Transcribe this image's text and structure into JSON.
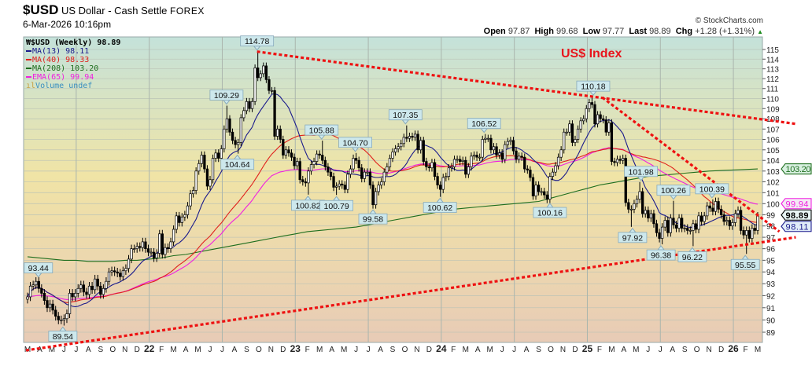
{
  "header": {
    "symbol": "$USD",
    "name": "US Dollar - Cash Settle",
    "exchange": "FOREX",
    "date": "6-Mar-2026 10:16pm",
    "copyright": "© StockCharts.com",
    "open_label": "Open",
    "open": "97.87",
    "high_label": "High",
    "high": "99.68",
    "low_label": "Low",
    "low": "97.77",
    "last_label": "Last",
    "last": "98.89",
    "chg_label": "Chg",
    "chg": "+1.28 (+1.31%)",
    "chg_icon": "up-triangle-icon"
  },
  "legend": [
    {
      "text": "$USD (Weekly) 98.89",
      "color": "#000000",
      "icon": "candlestick-icon"
    },
    {
      "text": "MA(13) 98.11",
      "color": "#1a1a8c"
    },
    {
      "text": "MA(40) 98.33",
      "color": "#e0201c"
    },
    {
      "text": "MA(208) 103.20",
      "color": "#1e6e1e"
    },
    {
      "text": "EMA(65) 99.94",
      "color": "#f020e0"
    },
    {
      "text": "Volume undef",
      "color": "#3a8fc0",
      "icon": "volume-bars-icon"
    }
  ],
  "annotation_title": "US$ Index",
  "colors": {
    "ma13": "#1a1a8c",
    "ma40": "#e0201c",
    "ma208": "#1e6e1e",
    "ema65": "#f020e0",
    "trendline": "#ee1111",
    "label_bg": "#cde8ec"
  },
  "chart_data": {
    "type": "candlestick",
    "interval": "weekly",
    "y_scale": "log",
    "ylim": [
      88.3,
      115.9
    ],
    "y_ticks": [
      89,
      90,
      91,
      92,
      93,
      94,
      95,
      96,
      97,
      98,
      99,
      100,
      101,
      102,
      103,
      104,
      105,
      106,
      107,
      108,
      109,
      110,
      111,
      112,
      113,
      114,
      115
    ],
    "x_ticks": [
      "M",
      "A",
      "M",
      "J",
      "J",
      "A",
      "S",
      "O",
      "N",
      "D",
      "22",
      "F",
      "M",
      "A",
      "M",
      "J",
      "J",
      "A",
      "S",
      "O",
      "N",
      "D",
      "23",
      "F",
      "M",
      "A",
      "M",
      "J",
      "J",
      "A",
      "S",
      "O",
      "N",
      "D",
      "24",
      "F",
      "M",
      "A",
      "M",
      "J",
      "J",
      "A",
      "S",
      "O",
      "N",
      "D",
      "25",
      "F",
      "M",
      "A",
      "M",
      "J",
      "J",
      "A",
      "S",
      "O",
      "N",
      "D",
      "26",
      "F",
      "M"
    ],
    "grid": true,
    "close": [
      91.9,
      92.8,
      92.9,
      93.2,
      92.6,
      92.2,
      91.6,
      91.0,
      91.3,
      90.8,
      90.3,
      90.0,
      90.0,
      90.1,
      90.5,
      92.2,
      91.9,
      92.2,
      92.6,
      92.9,
      92.3,
      92.1,
      92.8,
      92.5,
      93.4,
      92.8,
      92.1,
      92.6,
      93.2,
      94.0,
      94.1,
      94.0,
      93.9,
      93.6,
      94.1,
      94.3,
      95.1,
      96.0,
      96.0,
      96.2,
      96.1,
      96.6,
      96.0,
      95.7,
      95.7,
      95.2,
      95.6,
      97.3,
      95.5,
      96.1,
      96.0,
      96.6,
      97.7,
      98.9,
      98.3,
      98.8,
      99.0,
      99.8,
      100.9,
      101.2,
      103.0,
      103.7,
      104.5,
      103.2,
      101.6,
      102.2,
      104.2,
      104.7,
      104.2,
      105.1,
      107.0,
      108.0,
      106.7,
      105.9,
      105.5,
      105.7,
      108.1,
      108.8,
      109.7,
      109.0,
      109.7,
      113.1,
      112.1,
      112.5,
      113.3,
      111.9,
      110.8,
      110.8,
      106.3,
      107.0,
      106.0,
      104.5,
      105.0,
      104.7,
      104.3,
      103.5,
      103.9,
      102.2,
      102.0,
      101.9,
      103.0,
      103.6,
      103.9,
      104.6,
      104.5,
      104.0,
      103.4,
      102.9,
      102.5,
      101.5,
      101.6,
      101.8,
      101.7,
      101.3,
      102.7,
      103.2,
      104.2,
      104.0,
      103.3,
      102.3,
      102.9,
      102.9,
      101.7,
      99.9,
      101.1,
      101.7,
      102.0,
      102.9,
      103.4,
      104.2,
      104.8,
      105.1,
      105.3,
      105.6,
      106.2,
      106.1,
      106.3,
      106.2,
      106.5,
      105.0,
      105.9,
      103.9,
      103.4,
      103.3,
      103.8,
      102.5,
      101.7,
      101.3,
      102.4,
      102.5,
      103.3,
      103.4,
      104.1,
      104.1,
      103.9,
      104.0,
      102.7,
      103.4,
      104.4,
      104.5,
      104.3,
      104.3,
      106.0,
      106.1,
      106.1,
      105.0,
      105.3,
      104.5,
      104.7,
      104.1,
      105.5,
      105.8,
      105.9,
      104.9,
      104.1,
      104.4,
      104.3,
      103.2,
      103.1,
      102.4,
      100.7,
      101.7,
      101.1,
      101.1,
      100.8,
      100.4,
      102.5,
      102.9,
      103.5,
      104.3,
      105.0,
      106.7,
      106.7,
      107.5,
      105.7,
      106.0,
      107.0,
      107.8,
      108.0,
      109.0,
      109.6,
      109.4,
      107.5,
      108.4,
      108.0,
      107.9,
      106.7,
      107.6,
      103.9,
      103.8,
      104.1,
      104.0,
      104.2,
      100.1,
      99.5,
      99.5,
      100.0,
      100.4,
      101.1,
      99.1,
      99.4,
      98.7,
      99.1,
      98.2,
      97.4,
      96.9,
      97.9,
      98.5,
      97.4,
      98.7,
      98.1,
      97.8,
      98.7,
      97.8,
      97.8,
      97.6,
      97.6,
      98.2,
      97.7,
      98.9,
      98.4,
      98.9,
      99.8,
      99.6,
      99.3,
      100.2,
      99.5,
      99.0,
      98.4,
      98.5,
      98.0,
      98.3,
      99.1,
      99.4,
      97.6,
      97.2,
      97.6,
      96.9,
      97.8,
      97.6,
      98.89
    ],
    "ma208_monthly": [
      95.3,
      95.2,
      95.1,
      95.0,
      95.0,
      94.9,
      94.9,
      94.9,
      95.0,
      95.0,
      95.1,
      95.2,
      95.4,
      95.5,
      95.7,
      95.9,
      96.1,
      96.3,
      96.5,
      96.7,
      96.9,
      97.1,
      97.3,
      97.5,
      97.6,
      97.7,
      97.8,
      97.9,
      98.1,
      98.3,
      98.5,
      98.7,
      98.9,
      99.1,
      99.3,
      99.5,
      99.6,
      99.7,
      99.8,
      99.9,
      100.0,
      100.1,
      100.2,
      100.5,
      100.8,
      101.1,
      101.4,
      101.7,
      101.9,
      102.1,
      102.3,
      102.5,
      102.6,
      102.7,
      102.8,
      102.9,
      103.0,
      103.05,
      103.1,
      103.15,
      103.2
    ],
    "annotations": [
      {
        "text": "93.44",
        "value": 93.44,
        "date": "2021-04-01",
        "pos": "above"
      },
      {
        "text": "89.54",
        "value": 89.54,
        "date": "2021-06-01",
        "pos": "below"
      },
      {
        "text": "109.29",
        "value": 109.29,
        "date": "2022-07-14",
        "pos": "above"
      },
      {
        "text": "104.64",
        "value": 104.64,
        "date": "2022-08-10",
        "pos": "below"
      },
      {
        "text": "114.78",
        "value": 114.78,
        "date": "2022-09-28",
        "pos": "above"
      },
      {
        "text": "100.82",
        "value": 100.82,
        "date": "2023-02-02",
        "pos": "below"
      },
      {
        "text": "105.88",
        "value": 105.88,
        "date": "2023-03-08",
        "pos": "above"
      },
      {
        "text": "100.79",
        "value": 100.79,
        "date": "2023-04-14",
        "pos": "below"
      },
      {
        "text": "104.70",
        "value": 104.7,
        "date": "2023-05-31",
        "pos": "above"
      },
      {
        "text": "99.58",
        "value": 99.58,
        "date": "2023-07-14",
        "pos": "below"
      },
      {
        "text": "107.35",
        "value": 107.35,
        "date": "2023-10-03",
        "pos": "above"
      },
      {
        "text": "100.62",
        "value": 100.62,
        "date": "2023-12-28",
        "pos": "below"
      },
      {
        "text": "106.52",
        "value": 106.52,
        "date": "2024-04-16",
        "pos": "above"
      },
      {
        "text": "100.16",
        "value": 100.16,
        "date": "2024-09-27",
        "pos": "below"
      },
      {
        "text": "110.18",
        "value": 110.18,
        "date": "2025-01-13",
        "pos": "above"
      },
      {
        "text": "97.92",
        "value": 97.92,
        "date": "2025-04-21",
        "pos": "below"
      },
      {
        "text": "101.98",
        "value": 101.98,
        "date": "2025-05-12",
        "pos": "above"
      },
      {
        "text": "96.38",
        "value": 96.38,
        "date": "2025-07-01",
        "pos": "below"
      },
      {
        "text": "100.26",
        "value": 100.26,
        "date": "2025-08-01",
        "pos": "above"
      },
      {
        "text": "96.22",
        "value": 96.22,
        "date": "2025-09-17",
        "pos": "below"
      },
      {
        "text": "100.39",
        "value": 100.39,
        "date": "2025-11-05",
        "pos": "above"
      },
      {
        "text": "95.55",
        "value": 95.55,
        "date": "2026-01-27",
        "pos": "below"
      }
    ],
    "trendlines": [
      {
        "from": {
          "date": "2022-09-28",
          "value": 114.78
        },
        "to": {
          "date": "2026-06-02",
          "value": 107.5
        }
      },
      {
        "from": {
          "date": "2025-02-05",
          "value": 110.1
        },
        "to": {
          "date": "2026-04-22",
          "value": 97.5
        }
      },
      {
        "from": {
          "date": "2021-03-01",
          "value": 87.55
        },
        "to": {
          "date": "2026-06-02",
          "value": 97.0
        }
      }
    ],
    "right_tags": [
      {
        "text": "103.20",
        "value": 103.2,
        "color": "#1e6e1e",
        "bg": "#d8f0e0",
        "bold": false
      },
      {
        "text": "99.94",
        "value": 99.94,
        "color": "#f020e0",
        "bg": "#f4e8f4",
        "bold": false
      },
      {
        "text": "98.89",
        "value": 98.89,
        "color": "#000000",
        "bg": "#e8f4f4",
        "bold": true
      },
      {
        "text": "98.11",
        "value": 98.11,
        "color": "#1a1a8c",
        "bg": "#e0ecf8",
        "bold": false
      }
    ]
  }
}
